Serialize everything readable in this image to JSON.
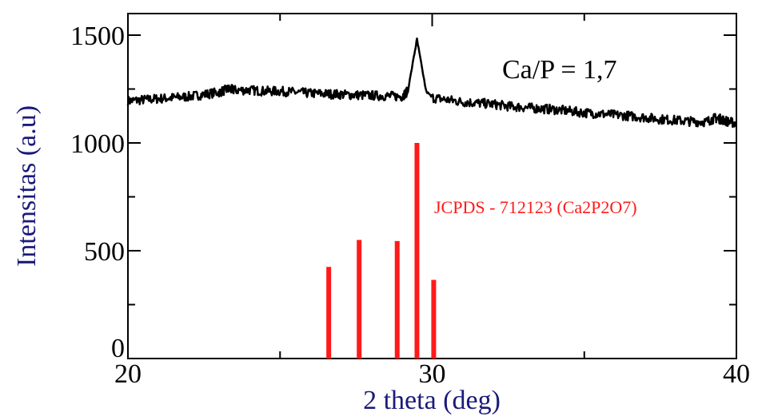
{
  "chart_data": {
    "type": "line",
    "xlabel": "2 theta (deg)",
    "ylabel": "Intensitas (a.u)",
    "xlim": [
      20,
      40
    ],
    "ylim": [
      0,
      1600
    ],
    "x_ticks": [
      20,
      30,
      40
    ],
    "y_ticks": [
      0,
      500,
      1000,
      1500
    ],
    "x_tick_labels": [
      "20",
      "30",
      "40"
    ],
    "y_tick_labels": [
      "0",
      "500",
      "1000",
      "1500"
    ],
    "grid": false,
    "annotation": "Ca/P = 1,7",
    "series": [
      {
        "name": "",
        "color": "#000000",
        "x": [
          20,
          20.5,
          21,
          21.5,
          22,
          22.5,
          23,
          23.3,
          23.5,
          24,
          24.5,
          25,
          25.5,
          26,
          26.5,
          27,
          27.5,
          28,
          28.5,
          29,
          29.2,
          29.4,
          29.5,
          29.6,
          29.8,
          30,
          30.5,
          31,
          31.5,
          32,
          32.5,
          33,
          33.5,
          34,
          34.5,
          35,
          35.5,
          36,
          36.5,
          37,
          37.5,
          38,
          38.5,
          39,
          39.3,
          39.5,
          39.7,
          40
        ],
        "y": [
          1195,
          1200,
          1205,
          1210,
          1215,
          1225,
          1235,
          1250,
          1245,
          1245,
          1240,
          1240,
          1235,
          1230,
          1228,
          1225,
          1222,
          1220,
          1218,
          1215,
          1240,
          1400,
          1480,
          1400,
          1240,
          1210,
          1200,
          1190,
          1185,
          1180,
          1170,
          1165,
          1160,
          1155,
          1148,
          1140,
          1135,
          1130,
          1125,
          1118,
          1110,
          1105,
          1100,
          1098,
          1115,
          1110,
          1100,
          1090
        ]
      }
    ],
    "reference": {
      "label": "JCPDS - 712123 (Ca2P2O7)",
      "color": "#ff1a1a",
      "x": [
        26.6,
        27.6,
        28.85,
        29.5,
        30.05
      ],
      "y": [
        425,
        550,
        545,
        1000,
        365
      ]
    }
  }
}
